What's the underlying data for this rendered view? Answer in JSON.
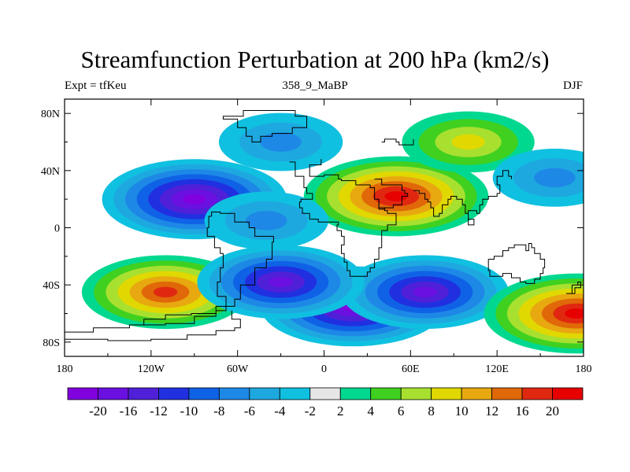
{
  "title": "Streamfunction Perturbation at 200 hPa (km2/s)",
  "left_string": "Expt = tfKeu",
  "center_string": "358_9_MaBP",
  "right_string": "DJF",
  "lat_ticks": [
    "80N",
    "40N",
    "0",
    "40S",
    "80S"
  ],
  "lon_ticks": [
    "180",
    "120W",
    "60W",
    "0",
    "60E",
    "120E",
    "180"
  ],
  "colorbar": {
    "colors": [
      "#8000e0",
      "#6a10e0",
      "#5020d8",
      "#2030e0",
      "#0f62e6",
      "#1e88e6",
      "#1ea8e0",
      "#10c0e0",
      "#e6e6e6",
      "#00d890",
      "#40d020",
      "#a8e030",
      "#e0d800",
      "#e8a810",
      "#e06808",
      "#e02810",
      "#e60000"
    ],
    "labels": [
      "-20",
      "-16",
      "-12",
      "-10",
      "-8",
      "-6",
      "-4",
      "-2",
      "2",
      "4",
      "6",
      "8",
      "10",
      "12",
      "16",
      "20"
    ]
  },
  "chart_data": {
    "type": "heatmap",
    "title": "Streamfunction Perturbation at 200 hPa (km2/s)",
    "xlabel": "",
    "ylabel": "",
    "xlim": [
      -180,
      180
    ],
    "ylim": [
      -90,
      90
    ],
    "contour_levels": [
      -20,
      -16,
      -12,
      -10,
      -8,
      -6,
      -4,
      -2,
      2,
      4,
      6,
      8,
      10,
      12,
      16,
      20
    ],
    "features": [
      {
        "lon": -90,
        "lat": 20,
        "value": -20
      },
      {
        "lon": 50,
        "lat": 22,
        "value": 20
      },
      {
        "lon": -110,
        "lat": -45,
        "value": 16
      },
      {
        "lon": 20,
        "lat": -55,
        "value": -20
      },
      {
        "lon": 70,
        "lat": -45,
        "value": -16
      },
      {
        "lon": -30,
        "lat": -38,
        "value": -16
      },
      {
        "lon": 100,
        "lat": 60,
        "value": 8
      },
      {
        "lon": 175,
        "lat": -60,
        "value": 20
      },
      {
        "lon": -30,
        "lat": 60,
        "value": -6
      },
      {
        "lon": 160,
        "lat": 35,
        "value": -6
      },
      {
        "lon": -40,
        "lat": 5,
        "value": -6
      }
    ]
  }
}
